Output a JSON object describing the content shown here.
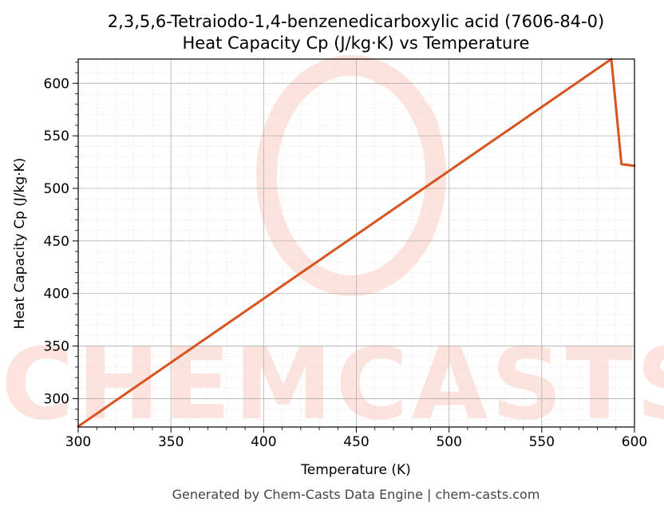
{
  "chart_data": {
    "type": "line",
    "title_line1": "2,3,5,6-Tetraiodo-1,4-benzenedicarboxylic acid (7606-84-0)",
    "title_line2": "Heat Capacity Cp (J/kg·K) vs Temperature",
    "xlabel": "Temperature (K)",
    "ylabel": "Heat Capacity Cp (J/kg·K)",
    "xlim": [
      300,
      600
    ],
    "ylim": [
      273,
      623
    ],
    "xticks": [
      300,
      350,
      400,
      450,
      500,
      550,
      600
    ],
    "yticks": [
      300,
      350,
      400,
      450,
      500,
      550,
      600
    ],
    "grid": true,
    "series": [
      {
        "color": "#d9531e",
        "x": [
          300,
          587.5,
          593,
          600
        ],
        "y": [
          273.5,
          623,
          523,
          521.5
        ]
      }
    ]
  },
  "watermark": {
    "text": "CHEMCASTS",
    "color": "#fde3de"
  },
  "footer": "Generated by Chem-Casts Data Engine | chem-casts.com"
}
